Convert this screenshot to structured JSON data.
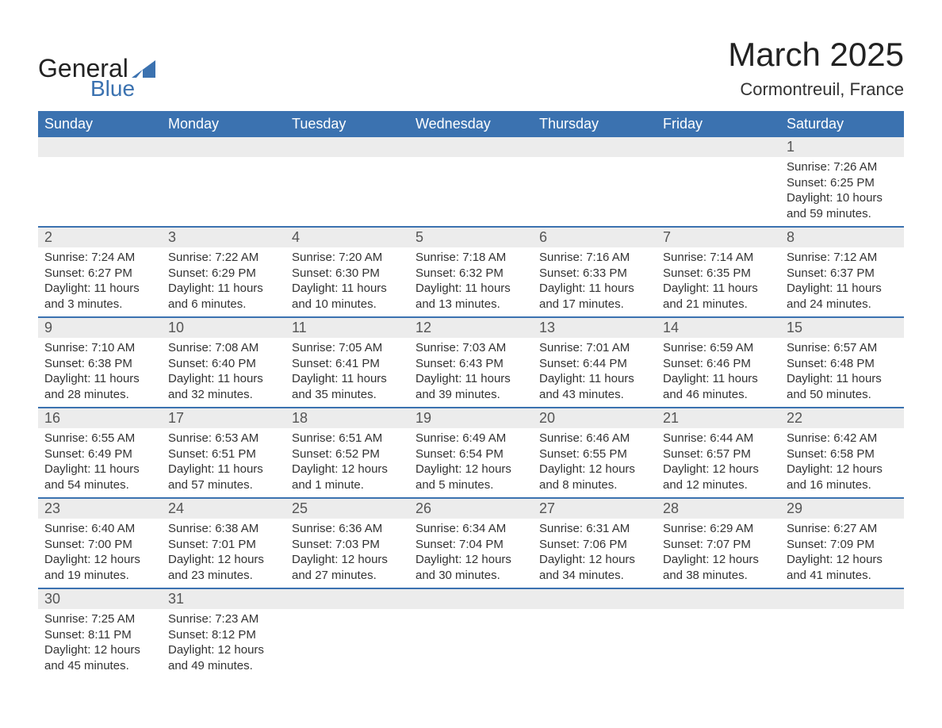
{
  "colors": {
    "header_bg": "#3b72b0",
    "header_text": "#ffffff",
    "daynum_bg": "#ececec",
    "row_border": "#3b72b0",
    "text": "#333333",
    "logo_blue": "#3b72b0",
    "logo_dark": "#222222",
    "page_bg": "#ffffff"
  },
  "typography": {
    "title_fontsize": 42,
    "subtitle_fontsize": 22,
    "weekday_fontsize": 18,
    "daynum_fontsize": 18,
    "detail_fontsize": 15,
    "logo_general_fontsize": 32,
    "logo_blue_fontsize": 28
  },
  "logo": {
    "text1": "General",
    "text2": "Blue"
  },
  "title": {
    "month": "March 2025",
    "location": "Cormontreuil, France"
  },
  "weekdays": [
    "Sunday",
    "Monday",
    "Tuesday",
    "Wednesday",
    "Thursday",
    "Friday",
    "Saturday"
  ],
  "weeks": [
    {
      "nums": [
        "",
        "",
        "",
        "",
        "",
        "",
        "1"
      ],
      "cells": [
        null,
        null,
        null,
        null,
        null,
        null,
        {
          "sunrise": "Sunrise: 7:26 AM",
          "sunset": "Sunset: 6:25 PM",
          "d1": "Daylight: 10 hours",
          "d2": "and 59 minutes."
        }
      ]
    },
    {
      "nums": [
        "2",
        "3",
        "4",
        "5",
        "6",
        "7",
        "8"
      ],
      "cells": [
        {
          "sunrise": "Sunrise: 7:24 AM",
          "sunset": "Sunset: 6:27 PM",
          "d1": "Daylight: 11 hours",
          "d2": "and 3 minutes."
        },
        {
          "sunrise": "Sunrise: 7:22 AM",
          "sunset": "Sunset: 6:29 PM",
          "d1": "Daylight: 11 hours",
          "d2": "and 6 minutes."
        },
        {
          "sunrise": "Sunrise: 7:20 AM",
          "sunset": "Sunset: 6:30 PM",
          "d1": "Daylight: 11 hours",
          "d2": "and 10 minutes."
        },
        {
          "sunrise": "Sunrise: 7:18 AM",
          "sunset": "Sunset: 6:32 PM",
          "d1": "Daylight: 11 hours",
          "d2": "and 13 minutes."
        },
        {
          "sunrise": "Sunrise: 7:16 AM",
          "sunset": "Sunset: 6:33 PM",
          "d1": "Daylight: 11 hours",
          "d2": "and 17 minutes."
        },
        {
          "sunrise": "Sunrise: 7:14 AM",
          "sunset": "Sunset: 6:35 PM",
          "d1": "Daylight: 11 hours",
          "d2": "and 21 minutes."
        },
        {
          "sunrise": "Sunrise: 7:12 AM",
          "sunset": "Sunset: 6:37 PM",
          "d1": "Daylight: 11 hours",
          "d2": "and 24 minutes."
        }
      ]
    },
    {
      "nums": [
        "9",
        "10",
        "11",
        "12",
        "13",
        "14",
        "15"
      ],
      "cells": [
        {
          "sunrise": "Sunrise: 7:10 AM",
          "sunset": "Sunset: 6:38 PM",
          "d1": "Daylight: 11 hours",
          "d2": "and 28 minutes."
        },
        {
          "sunrise": "Sunrise: 7:08 AM",
          "sunset": "Sunset: 6:40 PM",
          "d1": "Daylight: 11 hours",
          "d2": "and 32 minutes."
        },
        {
          "sunrise": "Sunrise: 7:05 AM",
          "sunset": "Sunset: 6:41 PM",
          "d1": "Daylight: 11 hours",
          "d2": "and 35 minutes."
        },
        {
          "sunrise": "Sunrise: 7:03 AM",
          "sunset": "Sunset: 6:43 PM",
          "d1": "Daylight: 11 hours",
          "d2": "and 39 minutes."
        },
        {
          "sunrise": "Sunrise: 7:01 AM",
          "sunset": "Sunset: 6:44 PM",
          "d1": "Daylight: 11 hours",
          "d2": "and 43 minutes."
        },
        {
          "sunrise": "Sunrise: 6:59 AM",
          "sunset": "Sunset: 6:46 PM",
          "d1": "Daylight: 11 hours",
          "d2": "and 46 minutes."
        },
        {
          "sunrise": "Sunrise: 6:57 AM",
          "sunset": "Sunset: 6:48 PM",
          "d1": "Daylight: 11 hours",
          "d2": "and 50 minutes."
        }
      ]
    },
    {
      "nums": [
        "16",
        "17",
        "18",
        "19",
        "20",
        "21",
        "22"
      ],
      "cells": [
        {
          "sunrise": "Sunrise: 6:55 AM",
          "sunset": "Sunset: 6:49 PM",
          "d1": "Daylight: 11 hours",
          "d2": "and 54 minutes."
        },
        {
          "sunrise": "Sunrise: 6:53 AM",
          "sunset": "Sunset: 6:51 PM",
          "d1": "Daylight: 11 hours",
          "d2": "and 57 minutes."
        },
        {
          "sunrise": "Sunrise: 6:51 AM",
          "sunset": "Sunset: 6:52 PM",
          "d1": "Daylight: 12 hours",
          "d2": "and 1 minute."
        },
        {
          "sunrise": "Sunrise: 6:49 AM",
          "sunset": "Sunset: 6:54 PM",
          "d1": "Daylight: 12 hours",
          "d2": "and 5 minutes."
        },
        {
          "sunrise": "Sunrise: 6:46 AM",
          "sunset": "Sunset: 6:55 PM",
          "d1": "Daylight: 12 hours",
          "d2": "and 8 minutes."
        },
        {
          "sunrise": "Sunrise: 6:44 AM",
          "sunset": "Sunset: 6:57 PM",
          "d1": "Daylight: 12 hours",
          "d2": "and 12 minutes."
        },
        {
          "sunrise": "Sunrise: 6:42 AM",
          "sunset": "Sunset: 6:58 PM",
          "d1": "Daylight: 12 hours",
          "d2": "and 16 minutes."
        }
      ]
    },
    {
      "nums": [
        "23",
        "24",
        "25",
        "26",
        "27",
        "28",
        "29"
      ],
      "cells": [
        {
          "sunrise": "Sunrise: 6:40 AM",
          "sunset": "Sunset: 7:00 PM",
          "d1": "Daylight: 12 hours",
          "d2": "and 19 minutes."
        },
        {
          "sunrise": "Sunrise: 6:38 AM",
          "sunset": "Sunset: 7:01 PM",
          "d1": "Daylight: 12 hours",
          "d2": "and 23 minutes."
        },
        {
          "sunrise": "Sunrise: 6:36 AM",
          "sunset": "Sunset: 7:03 PM",
          "d1": "Daylight: 12 hours",
          "d2": "and 27 minutes."
        },
        {
          "sunrise": "Sunrise: 6:34 AM",
          "sunset": "Sunset: 7:04 PM",
          "d1": "Daylight: 12 hours",
          "d2": "and 30 minutes."
        },
        {
          "sunrise": "Sunrise: 6:31 AM",
          "sunset": "Sunset: 7:06 PM",
          "d1": "Daylight: 12 hours",
          "d2": "and 34 minutes."
        },
        {
          "sunrise": "Sunrise: 6:29 AM",
          "sunset": "Sunset: 7:07 PM",
          "d1": "Daylight: 12 hours",
          "d2": "and 38 minutes."
        },
        {
          "sunrise": "Sunrise: 6:27 AM",
          "sunset": "Sunset: 7:09 PM",
          "d1": "Daylight: 12 hours",
          "d2": "and 41 minutes."
        }
      ]
    },
    {
      "nums": [
        "30",
        "31",
        "",
        "",
        "",
        "",
        ""
      ],
      "cells": [
        {
          "sunrise": "Sunrise: 7:25 AM",
          "sunset": "Sunset: 8:11 PM",
          "d1": "Daylight: 12 hours",
          "d2": "and 45 minutes."
        },
        {
          "sunrise": "Sunrise: 7:23 AM",
          "sunset": "Sunset: 8:12 PM",
          "d1": "Daylight: 12 hours",
          "d2": "and 49 minutes."
        },
        null,
        null,
        null,
        null,
        null
      ]
    }
  ]
}
